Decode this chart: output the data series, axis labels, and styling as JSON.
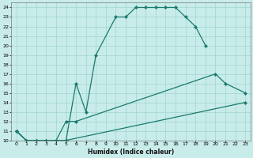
{
  "xlabel": "Humidex (Indice chaleur)",
  "bg_color": "#c8ecea",
  "grid_color": "#a0d4d0",
  "line_color": "#1a7a6e",
  "xlim": [
    -0.5,
    23.5
  ],
  "ylim": [
    10,
    24.5
  ],
  "xtick_labels": [
    "0",
    "1",
    "2",
    "3",
    "4",
    "5",
    "6",
    "7",
    "8",
    "9",
    "10",
    "11",
    "12",
    "13",
    "14",
    "15",
    "16",
    "17",
    "18",
    "19",
    "20",
    "21",
    "22",
    "23"
  ],
  "xtick_vals": [
    0,
    1,
    2,
    3,
    4,
    5,
    6,
    7,
    8,
    9,
    10,
    11,
    12,
    13,
    14,
    15,
    16,
    17,
    18,
    19,
    20,
    21,
    22,
    23
  ],
  "ytick_vals": [
    10,
    11,
    12,
    13,
    14,
    15,
    16,
    17,
    18,
    19,
    20,
    21,
    22,
    23,
    24
  ],
  "series": [
    {
      "x": [
        0,
        1,
        2,
        3,
        4,
        5,
        6,
        7,
        8,
        10,
        11,
        12,
        13,
        14,
        15,
        16,
        17,
        18,
        19
      ],
      "y": [
        11,
        10,
        10,
        10,
        10,
        10,
        16,
        13,
        19,
        23,
        23,
        24,
        24,
        24,
        24,
        24,
        23,
        22,
        20
      ]
    },
    {
      "x": [
        0,
        1,
        2,
        3,
        4,
        5,
        6,
        20,
        21,
        23
      ],
      "y": [
        11,
        10,
        10,
        10,
        10,
        12,
        12,
        17,
        16,
        15
      ]
    },
    {
      "x": [
        0,
        1,
        2,
        3,
        4,
        5,
        23
      ],
      "y": [
        11,
        10,
        10,
        10,
        10,
        10,
        14
      ]
    }
  ]
}
